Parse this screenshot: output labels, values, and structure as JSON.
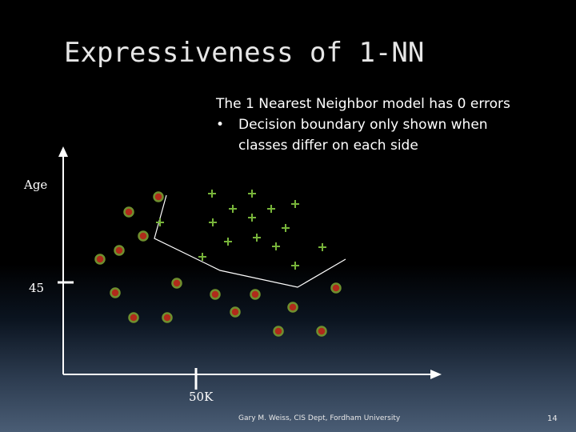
{
  "slide": {
    "title": "Expressiveness of 1-NN",
    "intro": "The 1 Nearest Neighbor model has 0 errors",
    "bullets": [
      {
        "marker": "•",
        "text": "Decision boundary only shown when classes differ on each side"
      }
    ],
    "footer": "Gary M. Weiss, CIS Dept, Fordham University",
    "page_number": "14"
  },
  "chart_data": {
    "type": "scatter",
    "ylabel": "Age",
    "ytick_label": "45",
    "xtick_label": "50K",
    "colors": {
      "circle_fill": "#b02a1a",
      "circle_ring": "#6f8f2e",
      "plus": "#78b43a",
      "boundary": "#ffffff",
      "axis": "#ffffff"
    },
    "series": [
      {
        "marker": "plus",
        "points": [
          [
            265,
            242
          ],
          [
            315,
            242
          ],
          [
            291,
            261
          ],
          [
            339,
            261
          ],
          [
            369,
            255
          ],
          [
            200,
            278
          ],
          [
            266,
            278
          ],
          [
            315,
            272
          ],
          [
            357,
            285
          ],
          [
            285,
            302
          ],
          [
            321,
            297
          ],
          [
            345,
            308
          ],
          [
            403,
            309
          ],
          [
            253,
            321
          ],
          [
            369,
            332
          ]
        ]
      },
      {
        "marker": "circle",
        "points": [
          [
            198,
            246
          ],
          [
            161,
            265
          ],
          [
            179,
            295
          ],
          [
            149,
            313
          ],
          [
            125,
            324
          ],
          [
            221,
            354
          ],
          [
            144,
            366
          ],
          [
            269,
            368
          ],
          [
            319,
            368
          ],
          [
            420,
            360
          ],
          [
            366,
            384
          ],
          [
            167,
            397
          ],
          [
            209,
            397
          ],
          [
            294,
            390
          ],
          [
            348,
            414
          ],
          [
            402,
            414
          ]
        ]
      }
    ],
    "boundary": [
      [
        208,
        244
      ],
      [
        193,
        298
      ],
      [
        275,
        338
      ],
      [
        372,
        359
      ],
      [
        432,
        324
      ]
    ]
  }
}
